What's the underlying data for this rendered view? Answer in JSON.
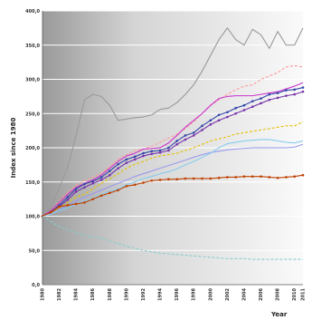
{
  "chart_data": {
    "type": "line",
    "ylabel": "Index since 1980",
    "xlabel": "Year",
    "ylim": [
      0,
      400
    ],
    "yticks": [
      "0,0",
      "50,0",
      "100,0",
      "150,0",
      "200,0",
      "250,0",
      "300,0",
      "350,0",
      "400,0"
    ],
    "x": [
      1980,
      1981,
      1982,
      1983,
      1984,
      1985,
      1986,
      1987,
      1988,
      1989,
      1990,
      1991,
      1992,
      1993,
      1994,
      1995,
      1996,
      1997,
      1998,
      1999,
      2000,
      2001,
      2002,
      2003,
      2004,
      2005,
      2006,
      2007,
      2008,
      2009,
      2010,
      2011
    ],
    "xtick_labels": [
      "1980",
      "1982",
      "1984",
      "1986",
      "1988",
      "1990",
      "1992",
      "1994",
      "1996",
      "1998",
      "2000",
      "2002",
      "2004",
      "2006",
      "2008",
      "2010",
      "2011"
    ],
    "grid": true,
    "series": [
      {
        "color": "#9a9a9a",
        "dash": "",
        "marker": "",
        "values": [
          100,
          112,
          142,
          172,
          218,
          270,
          278,
          275,
          262,
          240,
          242,
          244,
          245,
          248,
          256,
          258,
          266,
          278,
          292,
          312,
          335,
          358,
          375,
          358,
          350,
          373,
          365,
          345,
          370,
          350,
          350,
          375
        ]
      },
      {
        "color": "#ff9999",
        "dash": "3,2",
        "marker": "",
        "values": [
          100,
          108,
          122,
          135,
          145,
          152,
          157,
          163,
          172,
          183,
          190,
          196,
          198,
          202,
          208,
          214,
          220,
          228,
          238,
          250,
          262,
          270,
          278,
          285,
          290,
          292,
          300,
          305,
          310,
          318,
          320,
          318
        ]
      },
      {
        "color": "#cc33cc",
        "dash": "",
        "marker": "",
        "values": [
          100,
          108,
          120,
          132,
          142,
          148,
          153,
          160,
          170,
          180,
          188,
          192,
          198,
          199,
          200,
          207,
          218,
          230,
          240,
          250,
          262,
          272,
          275,
          276,
          276,
          276,
          278,
          280,
          282,
          286,
          290,
          295
        ]
      },
      {
        "color": "#3344aa",
        "dash": "",
        "marker": "dot",
        "values": [
          100,
          106,
          116,
          128,
          140,
          147,
          151,
          157,
          166,
          176,
          183,
          187,
          192,
          195,
          196,
          200,
          210,
          218,
          222,
          232,
          240,
          248,
          252,
          258,
          262,
          268,
          272,
          278,
          280,
          284,
          285,
          288
        ]
      },
      {
        "color": "#7733aa",
        "dash": "",
        "marker": "dot",
        "values": [
          100,
          105,
          114,
          124,
          136,
          142,
          148,
          153,
          160,
          170,
          178,
          183,
          188,
          191,
          193,
          196,
          205,
          212,
          218,
          226,
          234,
          240,
          245,
          250,
          255,
          260,
          265,
          270,
          273,
          276,
          278,
          282
        ]
      },
      {
        "color": "#e6c000",
        "dash": "3,2",
        "marker": "",
        "values": [
          100,
          104,
          112,
          120,
          128,
          132,
          140,
          148,
          155,
          162,
          170,
          176,
          180,
          185,
          188,
          190,
          192,
          196,
          200,
          205,
          210,
          213,
          216,
          220,
          222,
          224,
          226,
          228,
          230,
          232,
          232,
          238
        ]
      },
      {
        "color": "#9999ee",
        "dash": "",
        "marker": "",
        "values": [
          100,
          103,
          110,
          116,
          122,
          128,
          133,
          138,
          143,
          148,
          153,
          158,
          162,
          166,
          170,
          174,
          178,
          182,
          186,
          190,
          193,
          195,
          197,
          198,
          199,
          200,
          200,
          200,
          200,
          200,
          201,
          205
        ]
      },
      {
        "color": "#88ccee",
        "dash": "",
        "marker": "",
        "values": [
          100,
          103,
          108,
          112,
          118,
          122,
          126,
          132,
          136,
          140,
          146,
          150,
          155,
          158,
          162,
          165,
          169,
          175,
          180,
          186,
          192,
          200,
          206,
          208,
          210,
          211,
          212,
          212,
          210,
          208,
          207,
          210
        ]
      },
      {
        "color": "#c04000",
        "dash": "",
        "marker": "dot",
        "values": [
          100,
          106,
          114,
          116,
          118,
          120,
          125,
          130,
          134,
          138,
          144,
          146,
          149,
          152,
          153,
          154,
          154,
          155,
          155,
          155,
          155,
          156,
          157,
          157,
          158,
          158,
          158,
          157,
          156,
          157,
          158,
          160
        ]
      },
      {
        "color": "#88cccc",
        "dash": "3,2",
        "marker": "",
        "values": [
          100,
          92,
          85,
          80,
          76,
          72,
          70,
          68,
          64,
          60,
          56,
          53,
          50,
          48,
          46,
          45,
          44,
          43,
          42,
          41,
          40,
          39,
          38,
          38,
          38,
          37,
          37,
          37,
          37,
          37,
          37,
          37
        ]
      }
    ]
  }
}
